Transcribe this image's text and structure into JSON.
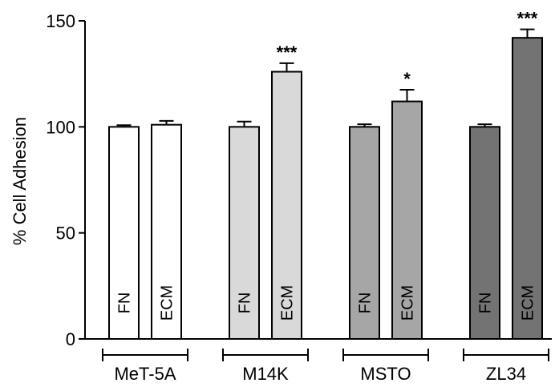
{
  "chart_data": {
    "type": "bar",
    "ylabel": "% Cell Adhesion",
    "ylim": [
      0,
      150
    ],
    "yticks": [
      0,
      50,
      100,
      150
    ],
    "groups": [
      {
        "name": "MeT-5A",
        "bars": [
          {
            "label": "FN",
            "value": 100,
            "error": 0.8,
            "color": "#ffffff",
            "sig": ""
          },
          {
            "label": "ECM",
            "value": 101,
            "error": 1.8,
            "color": "#ffffff",
            "sig": ""
          }
        ]
      },
      {
        "name": "M14K",
        "bars": [
          {
            "label": "FN",
            "value": 100,
            "error": 2.5,
            "color": "#d9d9d9",
            "sig": ""
          },
          {
            "label": "ECM",
            "value": 126,
            "error": 4,
            "color": "#d9d9d9",
            "sig": "***"
          }
        ]
      },
      {
        "name": "MSTO",
        "bars": [
          {
            "label": "FN",
            "value": 100,
            "error": 1.2,
            "color": "#a6a6a6",
            "sig": ""
          },
          {
            "label": "ECM",
            "value": 112,
            "error": 5.5,
            "color": "#a6a6a6",
            "sig": "*"
          }
        ]
      },
      {
        "name": "ZL34",
        "bars": [
          {
            "label": "FN",
            "value": 100,
            "error": 1.2,
            "color": "#737373",
            "sig": ""
          },
          {
            "label": "ECM",
            "value": 142,
            "error": 4,
            "color": "#737373",
            "sig": "***"
          }
        ]
      }
    ]
  }
}
